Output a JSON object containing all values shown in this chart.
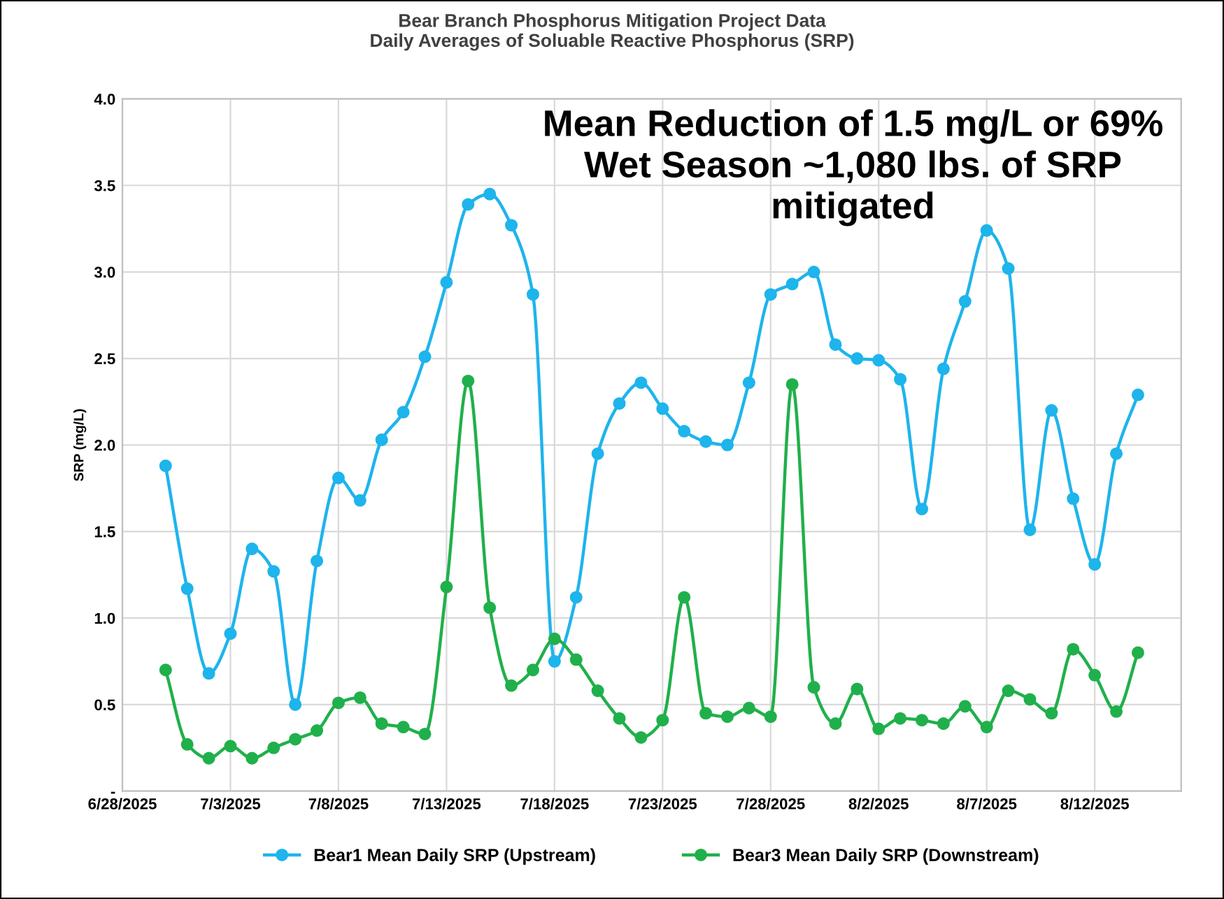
{
  "chart_data": {
    "type": "line",
    "title": "Bear Branch Phosphorus Mitigation Project Data\nDaily Averages of Soluable Reactive Phosphorus (SRP)",
    "ylabel": "SRP (mg/L)",
    "annotations": [
      "Mean Reduction of 1.5 mg/L or 69%\nWet Season ~1,080 lbs. of SRP\nmitigated"
    ],
    "x": [
      "2025-06-30",
      "2025-07-01",
      "2025-07-02",
      "2025-07-03",
      "2025-07-04",
      "2025-07-05",
      "2025-07-06",
      "2025-07-07",
      "2025-07-08",
      "2025-07-09",
      "2025-07-10",
      "2025-07-11",
      "2025-07-12",
      "2025-07-13",
      "2025-07-14",
      "2025-07-15",
      "2025-07-16",
      "2025-07-17",
      "2025-07-18",
      "2025-07-19",
      "2025-07-20",
      "2025-07-21",
      "2025-07-22",
      "2025-07-23",
      "2025-07-24",
      "2025-07-25",
      "2025-07-26",
      "2025-07-27",
      "2025-07-28",
      "2025-07-29",
      "2025-07-30",
      "2025-07-31",
      "2025-08-01",
      "2025-08-02",
      "2025-08-03",
      "2025-08-04",
      "2025-08-05",
      "2025-08-06",
      "2025-08-07",
      "2025-08-08",
      "2025-08-09",
      "2025-08-10",
      "2025-08-11",
      "2025-08-12",
      "2025-08-13",
      "2025-08-14"
    ],
    "series": [
      {
        "name": "Bear1 Mean Daily SRP (Upstream)",
        "color": "#1eb4ec",
        "values": [
          1.88,
          1.17,
          0.68,
          0.91,
          1.4,
          1.27,
          0.5,
          1.33,
          1.81,
          1.68,
          2.03,
          2.19,
          2.51,
          2.94,
          3.39,
          3.45,
          3.27,
          2.87,
          0.75,
          1.12,
          1.95,
          2.24,
          2.36,
          2.21,
          2.08,
          2.02,
          2.0,
          2.36,
          2.87,
          2.93,
          3.0,
          2.58,
          2.5,
          2.49,
          2.38,
          1.63,
          2.44,
          2.83,
          3.24,
          3.02,
          1.51,
          2.2,
          1.69,
          1.31,
          1.95,
          2.29
        ]
      },
      {
        "name": "Bear3 Mean Daily SRP (Downstream)",
        "color": "#20b04b",
        "values": [
          0.7,
          0.27,
          0.19,
          0.26,
          0.19,
          0.25,
          0.3,
          0.35,
          0.51,
          0.54,
          0.39,
          0.37,
          0.33,
          1.18,
          2.37,
          1.06,
          0.61,
          0.7,
          0.88,
          0.76,
          0.58,
          0.42,
          0.31,
          0.41,
          1.12,
          0.45,
          0.43,
          0.48,
          0.43,
          2.35,
          0.6,
          0.39,
          0.59,
          0.36,
          0.42,
          0.41,
          0.39,
          0.49,
          0.37,
          0.58,
          0.53,
          0.45,
          0.82,
          0.67,
          0.46,
          0.8
        ]
      }
    ],
    "xlim": [
      "2025-06-28",
      "2025-08-16"
    ],
    "xticks": [
      {
        "value": "2025-06-28",
        "label": "6/28/2025"
      },
      {
        "value": "2025-07-03",
        "label": "7/3/2025"
      },
      {
        "value": "2025-07-08",
        "label": "7/8/2025"
      },
      {
        "value": "2025-07-13",
        "label": "7/13/2025"
      },
      {
        "value": "2025-07-18",
        "label": "7/18/2025"
      },
      {
        "value": "2025-07-23",
        "label": "7/23/2025"
      },
      {
        "value": "2025-07-28",
        "label": "7/28/2025"
      },
      {
        "value": "2025-08-02",
        "label": "8/2/2025"
      },
      {
        "value": "2025-08-07",
        "label": "8/7/2025"
      },
      {
        "value": "2025-08-12",
        "label": "8/12/2025"
      }
    ],
    "ylim": [
      0,
      4.0
    ],
    "yticks": [
      {
        "value": 0,
        "label": "-"
      },
      {
        "value": 0.5,
        "label": "0.5"
      },
      {
        "value": 1.0,
        "label": "1.0"
      },
      {
        "value": 1.5,
        "label": "1.5"
      },
      {
        "value": 2.0,
        "label": "2.0"
      },
      {
        "value": 2.5,
        "label": "2.5"
      },
      {
        "value": 3.0,
        "label": "3.0"
      },
      {
        "value": 3.5,
        "label": "3.5"
      },
      {
        "value": 4.0,
        "label": "4.0"
      }
    ],
    "grid": true,
    "legend": "bottom",
    "marker": "circle",
    "line_style": "solid"
  }
}
